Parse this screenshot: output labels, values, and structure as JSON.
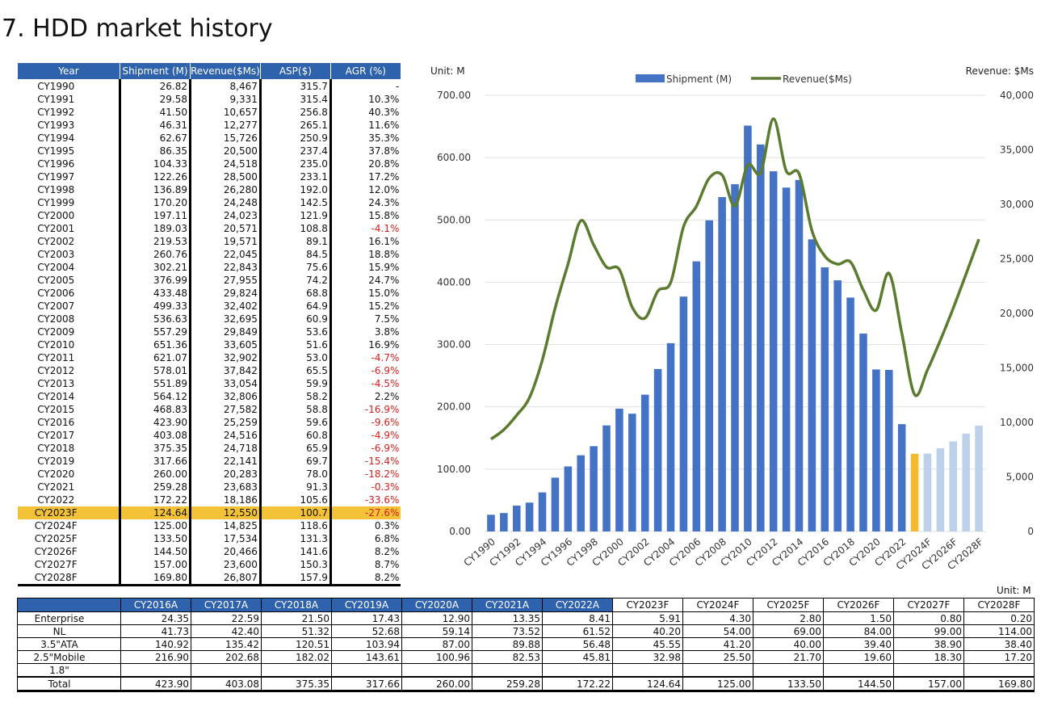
{
  "title": "7. HDD market history",
  "history_table": {
    "headers": [
      "Year",
      "Shipment (M)",
      "Revenue($Ms)",
      "ASP($)",
      "AGR (%)"
    ],
    "highlight_row": "CY2023F",
    "rows": [
      [
        "CY1990",
        "26.82",
        "8,467",
        "315.7",
        "-"
      ],
      [
        "CY1991",
        "29.58",
        "9,331",
        "315.4",
        "10.3%"
      ],
      [
        "CY1992",
        "41.50",
        "10,657",
        "256.8",
        "40.3%"
      ],
      [
        "CY1993",
        "46.31",
        "12,277",
        "265.1",
        "11.6%"
      ],
      [
        "CY1994",
        "62.67",
        "15,726",
        "250.9",
        "35.3%"
      ],
      [
        "CY1995",
        "86.35",
        "20,500",
        "237.4",
        "37.8%"
      ],
      [
        "CY1996",
        "104.33",
        "24,518",
        "235.0",
        "20.8%"
      ],
      [
        "CY1997",
        "122.26",
        "28,500",
        "233.1",
        "17.2%"
      ],
      [
        "CY1998",
        "136.89",
        "26,280",
        "192.0",
        "12.0%"
      ],
      [
        "CY1999",
        "170.20",
        "24,248",
        "142.5",
        "24.3%"
      ],
      [
        "CY2000",
        "197.11",
        "24,023",
        "121.9",
        "15.8%"
      ],
      [
        "CY2001",
        "189.03",
        "20,571",
        "108.8",
        "-4.1%"
      ],
      [
        "CY2002",
        "219.53",
        "19,571",
        "89.1",
        "16.1%"
      ],
      [
        "CY2003",
        "260.76",
        "22,045",
        "84.5",
        "18.8%"
      ],
      [
        "CY2004",
        "302.21",
        "22,843",
        "75.6",
        "15.9%"
      ],
      [
        "CY2005",
        "376.99",
        "27,955",
        "74.2",
        "24.7%"
      ],
      [
        "CY2006",
        "433.48",
        "29,824",
        "68.8",
        "15.0%"
      ],
      [
        "CY2007",
        "499.33",
        "32,402",
        "64.9",
        "15.2%"
      ],
      [
        "CY2008",
        "536.63",
        "32,695",
        "60.9",
        "7.5%"
      ],
      [
        "CY2009",
        "557.29",
        "29,849",
        "53.6",
        "3.8%"
      ],
      [
        "CY2010",
        "651.36",
        "33,605",
        "51.6",
        "16.9%"
      ],
      [
        "CY2011",
        "621.07",
        "32,902",
        "53.0",
        "-4.7%"
      ],
      [
        "CY2012",
        "578.01",
        "37,842",
        "65.5",
        "-6.9%"
      ],
      [
        "CY2013",
        "551.89",
        "33,054",
        "59.9",
        "-4.5%"
      ],
      [
        "CY2014",
        "564.12",
        "32,806",
        "58.2",
        "2.2%"
      ],
      [
        "CY2015",
        "468.83",
        "27,582",
        "58.8",
        "-16.9%"
      ],
      [
        "CY2016",
        "423.90",
        "25,259",
        "59.6",
        "-9.6%"
      ],
      [
        "CY2017",
        "403.08",
        "24,516",
        "60.8",
        "-4.9%"
      ],
      [
        "CY2018",
        "375.35",
        "24,718",
        "65.9",
        "-6.9%"
      ],
      [
        "CY2019",
        "317.66",
        "22,141",
        "69.7",
        "-15.4%"
      ],
      [
        "CY2020",
        "260.00",
        "20,283",
        "78.0",
        "-18.2%"
      ],
      [
        "CY2021",
        "259.28",
        "23,683",
        "91.3",
        "-0.3%"
      ],
      [
        "CY2022",
        "172.22",
        "18,186",
        "105.6",
        "-33.6%"
      ],
      [
        "CY2023F",
        "124.64",
        "12,550",
        "100.7",
        "-27.6%"
      ],
      [
        "CY2024F",
        "125.00",
        "14,825",
        "118.6",
        "0.3%"
      ],
      [
        "CY2025F",
        "133.50",
        "17,534",
        "131.3",
        "6.8%"
      ],
      [
        "CY2026F",
        "144.50",
        "20,466",
        "141.6",
        "8.2%"
      ],
      [
        "CY2027F",
        "157.00",
        "23,600",
        "150.3",
        "8.7%"
      ],
      [
        "CY2028F",
        "169.80",
        "26,807",
        "157.9",
        "8.2%"
      ]
    ]
  },
  "segment_table": {
    "unit": "Unit: M",
    "headers": [
      "",
      "CY2016A",
      "CY2017A",
      "CY2018A",
      "CY2019A",
      "CY2020A",
      "CY2021A",
      "CY2022A",
      "CY2023F",
      "CY2024F",
      "CY2025F",
      "CY2026F",
      "CY2027F",
      "CY2028F"
    ],
    "actual_count": 7,
    "rows": [
      [
        "Enterprise",
        "24.35",
        "22.59",
        "21.50",
        "17.43",
        "12.90",
        "13.35",
        "8.41",
        "5.91",
        "4.30",
        "2.80",
        "1.50",
        "0.80",
        "0.20"
      ],
      [
        "NL",
        "41.73",
        "42.40",
        "51.32",
        "52.68",
        "59.14",
        "73.52",
        "61.52",
        "40.20",
        "54.00",
        "69.00",
        "84.00",
        "99.00",
        "114.00"
      ],
      [
        "3.5\"ATA",
        "140.92",
        "135.42",
        "120.51",
        "103.94",
        "87.00",
        "89.88",
        "56.48",
        "45.55",
        "41.20",
        "40.00",
        "39.40",
        "38.90",
        "38.40"
      ],
      [
        "2.5\"Mobile",
        "216.90",
        "202.68",
        "182.02",
        "143.61",
        "100.96",
        "82.53",
        "45.81",
        "32.98",
        "25.50",
        "21.70",
        "19.60",
        "18.30",
        "17.20"
      ],
      [
        "1.8\"",
        "",
        "",
        "",
        "",
        "",
        "",
        "",
        "",
        "",
        "",
        "",
        "",
        ""
      ],
      [
        "Total",
        "423.90",
        "403.08",
        "375.35",
        "317.66",
        "260.00",
        "259.28",
        "172.22",
        "124.64",
        "125.00",
        "133.50",
        "144.50",
        "157.00",
        "169.80"
      ]
    ]
  },
  "chart_data": {
    "type": "bar",
    "left_axis_unit": "Unit: M",
    "right_axis_unit": "Revenue: $Ms",
    "legend": [
      "Shipment (M)",
      "Revenue($Ms)"
    ],
    "legend_position": "top-center",
    "categories": [
      "CY1990",
      "CY1991",
      "CY1992",
      "CY1993",
      "CY1994",
      "CY1995",
      "CY1996",
      "CY1997",
      "CY1998",
      "CY1999",
      "CY2000",
      "CY2001",
      "CY2002",
      "CY2003",
      "CY2004",
      "CY2005",
      "CY2006",
      "CY2007",
      "CY2008",
      "CY2009",
      "CY2010",
      "CY2011",
      "CY2012",
      "CY2013",
      "CY2014",
      "CY2015",
      "CY2016",
      "CY2017",
      "CY2018",
      "CY2019",
      "CY2020",
      "CY2021",
      "CY2022",
      "CY2023F",
      "CY2024F",
      "CY2025F",
      "CY2026F",
      "CY2027F",
      "CY2028F"
    ],
    "x_tick_labels": [
      "CY1990",
      "CY1992",
      "CY1994",
      "CY1996",
      "CY1998",
      "CY2000",
      "CY2002",
      "CY2004",
      "CY2006",
      "CY2008",
      "CY2010",
      "CY2012",
      "CY2014",
      "CY2016",
      "CY2018",
      "CY2020",
      "CY2022",
      "CY2024F",
      "CY2026F",
      "CY2028F"
    ],
    "series": [
      {
        "name": "Shipment (M)",
        "type": "bar",
        "axis": "left",
        "values": [
          26.82,
          29.58,
          41.5,
          46.31,
          62.67,
          86.35,
          104.33,
          122.26,
          136.89,
          170.2,
          197.11,
          189.03,
          219.53,
          260.76,
          302.21,
          376.99,
          433.48,
          499.33,
          536.63,
          557.29,
          651.36,
          621.07,
          578.01,
          551.89,
          564.12,
          468.83,
          423.9,
          403.08,
          375.35,
          317.66,
          260.0,
          259.28,
          172.22,
          124.64,
          125.0,
          133.5,
          144.5,
          157.0,
          169.8
        ]
      },
      {
        "name": "Revenue($Ms)",
        "type": "line",
        "axis": "right",
        "values": [
          8467,
          9331,
          10657,
          12277,
          15726,
          20500,
          24518,
          28500,
          26280,
          24248,
          24023,
          20571,
          19571,
          22045,
          22843,
          27955,
          29824,
          32402,
          32695,
          29849,
          33605,
          32902,
          37842,
          33054,
          32806,
          27582,
          25259,
          24516,
          24718,
          22141,
          20283,
          23683,
          18186,
          12550,
          14825,
          17534,
          20466,
          23600,
          26807
        ]
      }
    ],
    "ylim_left": [
      0,
      700
    ],
    "yticks_left": [
      "0.00",
      "100.00",
      "200.00",
      "300.00",
      "400.00",
      "500.00",
      "600.00",
      "700.00"
    ],
    "ylim_right": [
      0,
      40000
    ],
    "yticks_right": [
      "0",
      "5,000",
      "10,000",
      "15,000",
      "20,000",
      "25,000",
      "30,000",
      "35,000",
      "40,000"
    ],
    "grid": true,
    "colors": {
      "bar_actual": "#4472c4",
      "bar_highlight": "#f4b92c",
      "bar_forecast": "#bcd0ea",
      "line": "#5b7b2e"
    }
  }
}
